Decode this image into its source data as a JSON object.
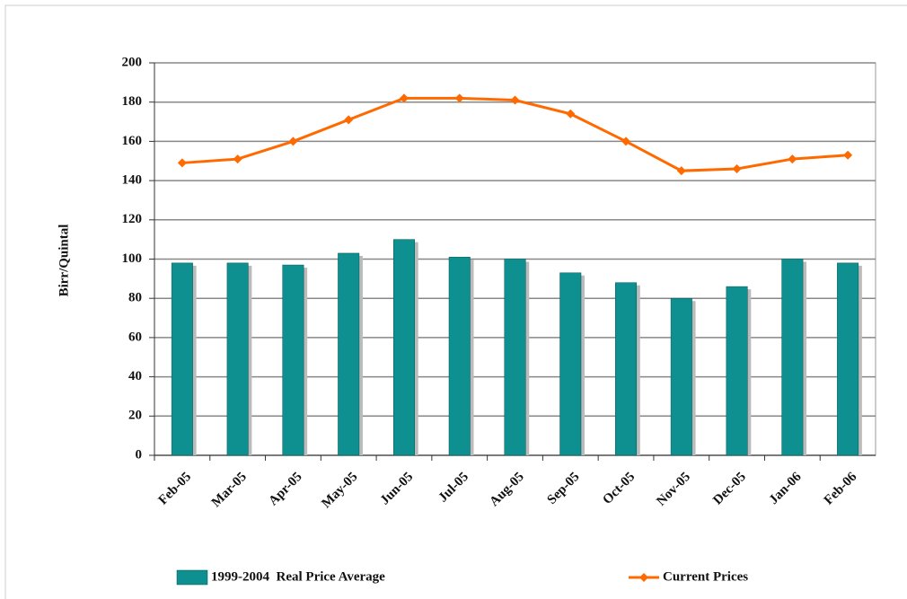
{
  "chart_data": {
    "type": "combo",
    "y_label": "Birr/Quintal",
    "categories": [
      "Feb-05",
      "Mar-05",
      "Apr-05",
      "May-05",
      "Jun-05",
      "Jul-05",
      "Aug-05",
      "Sep-05",
      "Oct-05",
      "Nov-05",
      "Dec-05",
      "Jan-06",
      "Feb-06"
    ],
    "series": [
      {
        "name": "1999-2004  Real Price Average",
        "type": "bar",
        "color": "#0e9090",
        "values": [
          98,
          98,
          97,
          103,
          110,
          101,
          100,
          93,
          88,
          80,
          86,
          100,
          98
        ]
      },
      {
        "name": "Current Prices",
        "type": "line",
        "color": "#ff6a00",
        "values": [
          149,
          151,
          160,
          171,
          182,
          182,
          181,
          174,
          160,
          145,
          146,
          151,
          153
        ]
      }
    ],
    "ylim": [
      0,
      200
    ],
    "yticks": [
      0,
      20,
      40,
      60,
      80,
      100,
      120,
      140,
      160,
      180,
      200
    ],
    "grid": true
  }
}
